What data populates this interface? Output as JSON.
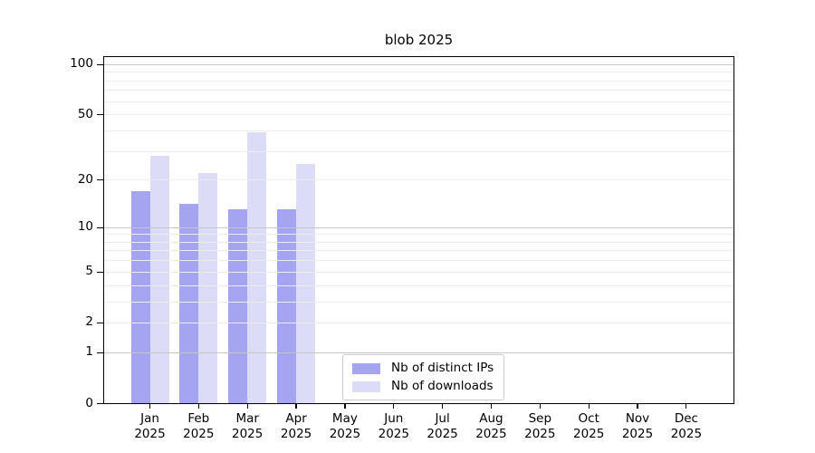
{
  "title": "blob 2025",
  "colors": {
    "ips": "#a4a4f0",
    "downloads": "#dcdcf8",
    "grid_minor": "#ececec",
    "grid_major": "#c6c6c6",
    "axis": "#000000",
    "legend_border": "#cccccc"
  },
  "legend": {
    "items": [
      {
        "label": "Nb of distinct IPs",
        "key": "ips"
      },
      {
        "label": "Nb of downloads",
        "key": "downloads"
      }
    ]
  },
  "chart_data": {
    "type": "bar",
    "title": "blob 2025",
    "categories": [
      "Jan 2025",
      "Feb 2025",
      "Mar 2025",
      "Apr 2025",
      "May 2025",
      "Jun 2025",
      "Jul 2025",
      "Aug 2025",
      "Sep 2025",
      "Oct 2025",
      "Nov 2025",
      "Dec 2025"
    ],
    "series": [
      {
        "name": "Nb of distinct IPs",
        "values": [
          17,
          14,
          13,
          13,
          0,
          0,
          0,
          0,
          0,
          0,
          0,
          0
        ]
      },
      {
        "name": "Nb of downloads",
        "values": [
          28,
          22,
          39,
          25,
          0,
          0,
          0,
          0,
          0,
          0,
          0,
          0
        ]
      }
    ],
    "yscale": "log1p",
    "ylim": [
      0,
      110
    ],
    "ytick_labels": [
      0,
      1,
      2,
      5,
      10,
      20,
      50,
      100
    ],
    "grid_major": [
      1,
      10,
      100
    ],
    "grid_minor": [
      2,
      3,
      4,
      5,
      6,
      7,
      8,
      9,
      20,
      30,
      40,
      50,
      60,
      70,
      80,
      90
    ],
    "grid": true,
    "legend_position": "lower center",
    "xlabel": "",
    "ylabel": ""
  }
}
